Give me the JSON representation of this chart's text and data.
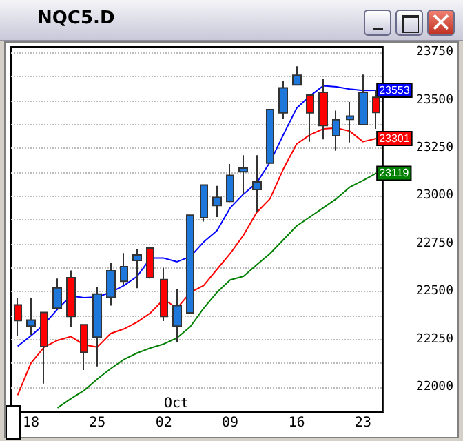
{
  "chart_data": {
    "type": "candlestick",
    "title": "NQC5.D",
    "categories": [
      null,
      "18",
      null,
      null,
      null,
      null,
      "25",
      null,
      null,
      null,
      null,
      "02",
      null,
      null,
      null,
      null,
      "09",
      null,
      null,
      null,
      null,
      "16",
      null,
      null,
      null,
      null,
      "23",
      null
    ],
    "ohlc": [
      [
        22430,
        22465,
        22269,
        22348
      ],
      [
        22320,
        22465,
        22274,
        22351
      ],
      [
        22391,
        22391,
        22019,
        22212
      ],
      [
        22413,
        22568,
        22413,
        22520
      ],
      [
        22573,
        22611,
        22317,
        22370
      ],
      [
        22327,
        22327,
        22090,
        22183
      ],
      [
        22262,
        22525,
        22109,
        22487
      ],
      [
        22470,
        22652,
        22427,
        22609
      ],
      [
        22554,
        22702,
        22537,
        22630
      ],
      [
        22663,
        22723,
        22518,
        22692
      ],
      [
        22728,
        22728,
        22568,
        22573
      ],
      [
        22563,
        22625,
        22346,
        22370
      ],
      [
        22320,
        22515,
        22234,
        22427
      ],
      [
        22389,
        22900,
        22384,
        22900
      ],
      [
        22886,
        23057,
        22866,
        23057
      ],
      [
        22950,
        23053,
        22890,
        22993
      ],
      [
        22972,
        23167,
        22967,
        23108
      ],
      [
        23127,
        23213,
        23010,
        23146
      ],
      [
        23034,
        23213,
        22919,
        23074
      ],
      [
        23172,
        23452,
        23172,
        23452
      ],
      [
        23435,
        23600,
        23404,
        23566
      ],
      [
        23581,
        23678,
        23581,
        23631
      ],
      [
        23528,
        23528,
        23284,
        23435
      ],
      [
        23542,
        23614,
        23296,
        23368
      ],
      [
        23315,
        23447,
        23237,
        23399
      ],
      [
        23401,
        23492,
        23280,
        23418
      ],
      [
        23373,
        23635,
        23373,
        23542
      ],
      [
        23516,
        23552,
        23351,
        23437
      ]
    ],
    "colors": [
      "#ff0000",
      "#1e78dc",
      "#ff0000",
      "#1e78dc",
      "#ff0000",
      "#ff0000",
      "#1e78dc",
      "#1e78dc",
      "#1e78dc",
      "#1e78dc",
      "#ff0000",
      "#ff0000",
      "#1e78dc",
      "#1e78dc",
      "#1e78dc",
      "#1e78dc",
      "#1e78dc",
      "#1e78dc",
      "#1e78dc",
      "#1e78dc",
      "#1e78dc",
      "#1e78dc",
      "#ff0000",
      "#ff0000",
      "#1e78dc",
      "#1e78dc",
      "#1e78dc",
      "#ff0000"
    ],
    "series": [
      {
        "type": "line",
        "color": "#0000ff",
        "values": [
          22214,
          22269,
          22329,
          22408,
          22477,
          22468,
          22472,
          22496,
          22532,
          22580,
          22675,
          22675,
          22656,
          22683,
          22759,
          22819,
          22938,
          23010,
          23069,
          23177,
          23320,
          23459,
          23523,
          23576,
          23571,
          23559,
          23552,
          23553
        ],
        "value_labels": [
          null,
          null,
          null,
          null,
          null,
          null,
          null,
          null,
          null,
          null,
          null,
          null,
          null,
          null,
          null,
          null,
          null,
          null,
          null,
          null,
          null,
          null,
          null,
          null,
          null,
          null,
          null,
          "23553"
        ]
      },
      {
        "type": "line",
        "color": "#ff0000",
        "values": [
          21959,
          22126,
          22210,
          22245,
          22265,
          22222,
          22210,
          22281,
          22305,
          22341,
          22389,
          22460,
          22413,
          22496,
          22532,
          22616,
          22699,
          22795,
          22914,
          22986,
          23141,
          23272,
          23320,
          23351,
          23356,
          23339,
          23284,
          23301
        ],
        "value_labels": [
          null,
          null,
          null,
          null,
          null,
          null,
          null,
          null,
          null,
          null,
          null,
          null,
          null,
          null,
          null,
          null,
          null,
          null,
          null,
          null,
          null,
          null,
          null,
          null,
          null,
          null,
          null,
          "23301"
        ]
      },
      {
        "type": "line",
        "color": "#008000",
        "values": [
          null,
          null,
          null,
          21892,
          21940,
          21983,
          22043,
          22097,
          22145,
          22179,
          22205,
          22226,
          22258,
          22317,
          22413,
          22496,
          22561,
          22580,
          22640,
          22699,
          22771,
          22843,
          22890,
          22938,
          22986,
          23046,
          23081,
          23119
        ],
        "value_labels": [
          null,
          null,
          null,
          null,
          null,
          null,
          null,
          null,
          null,
          null,
          null,
          null,
          null,
          null,
          null,
          null,
          null,
          null,
          null,
          null,
          null,
          null,
          null,
          null,
          null,
          null,
          null,
          "23119"
        ]
      }
    ],
    "ylim": [
      21870,
      23780
    ],
    "yticks": [
      22000,
      {
        "value": 22125,
        "label": null
      },
      22250,
      {
        "value": 22375,
        "label": null
      },
      22500,
      {
        "value": 22625,
        "label": null
      },
      22750,
      {
        "value": 22875,
        "label": null
      },
      23000,
      {
        "value": 23125,
        "label": null
      },
      23250,
      {
        "value": 23375,
        "label": null
      },
      23500,
      {
        "value": 23625,
        "label": null
      },
      23750
    ],
    "grid": "y",
    "annotations": [
      "Oct"
    ]
  }
}
